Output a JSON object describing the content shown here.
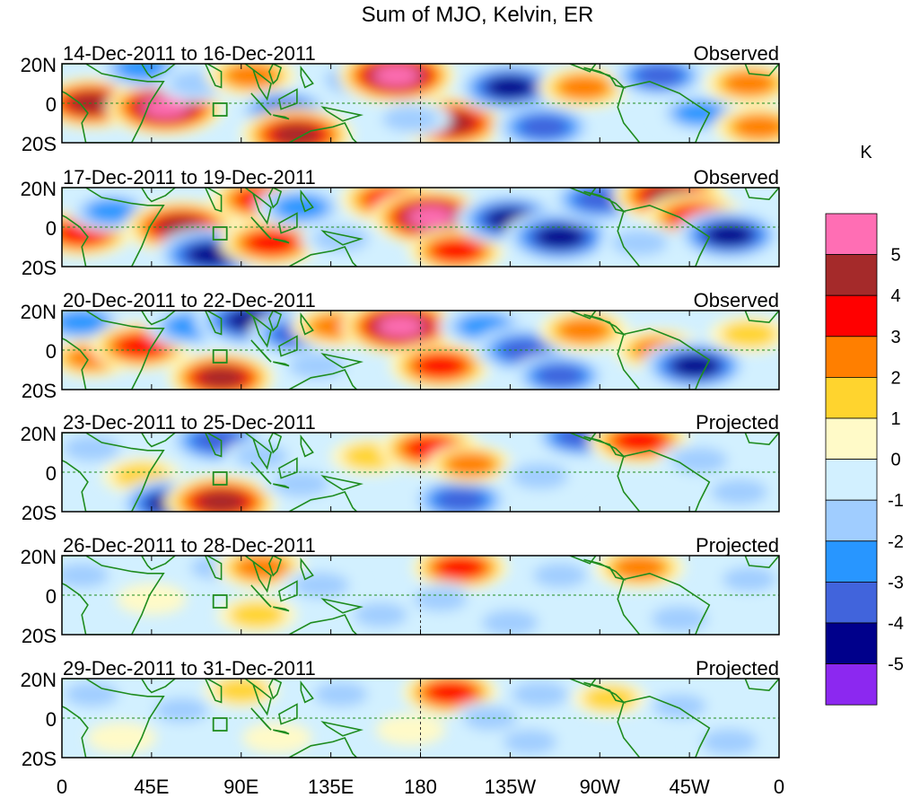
{
  "chart_data": {
    "type": "heatmap",
    "title": "Sum of MJO, Kelvin, ER",
    "units": "K",
    "y_ticks": [
      "20N",
      "0",
      "20S"
    ],
    "x_ticks": [
      "0",
      "45E",
      "90E",
      "135E",
      "180",
      "135W",
      "90W",
      "45W",
      "0"
    ],
    "x_range_lon": [
      0,
      360
    ],
    "y_range_lat": [
      -20,
      20
    ],
    "colorbar": {
      "labels": [
        "5",
        "4",
        "3",
        "2",
        "1",
        "0",
        "-1",
        "-2",
        "-3",
        "-4",
        "-5"
      ],
      "colors": [
        "#ff6eb4",
        "#a52a2a",
        "#ff0000",
        "#ff7f00",
        "#ffd42e",
        "#fffac8",
        "#d2f0ff",
        "#a0cdff",
        "#2896ff",
        "#4164dc",
        "#00008b",
        "#8c28f0"
      ]
    },
    "panels": [
      {
        "period": "14-Dec-2011 to 16-Dec-2011",
        "status": "Observed",
        "anomalies": [
          {
            "lon": 15,
            "lat": 0,
            "value": 4.5
          },
          {
            "lon": 52,
            "lat": -2,
            "value": 5.5
          },
          {
            "lon": 40,
            "lat": 18,
            "value": -3
          },
          {
            "lon": 68,
            "lat": 10,
            "value": -2
          },
          {
            "lon": 95,
            "lat": 14,
            "value": 3
          },
          {
            "lon": 112,
            "lat": -4,
            "value": -3.5
          },
          {
            "lon": 118,
            "lat": -16,
            "value": 5
          },
          {
            "lon": 150,
            "lat": 12,
            "value": -3
          },
          {
            "lon": 168,
            "lat": 14,
            "value": 5.5
          },
          {
            "lon": 195,
            "lat": -10,
            "value": 5
          },
          {
            "lon": 175,
            "lat": -8,
            "value": -2
          },
          {
            "lon": 225,
            "lat": 8,
            "value": -4.5
          },
          {
            "lon": 242,
            "lat": -12,
            "value": -4
          },
          {
            "lon": 262,
            "lat": 8,
            "value": 3
          },
          {
            "lon": 300,
            "lat": 14,
            "value": -3.5
          },
          {
            "lon": 320,
            "lat": -5,
            "value": -2.5
          },
          {
            "lon": 345,
            "lat": 10,
            "value": 3
          },
          {
            "lon": 350,
            "lat": -12,
            "value": 3
          }
        ]
      },
      {
        "period": "17-Dec-2011 to 19-Dec-2011",
        "status": "Observed",
        "anomalies": [
          {
            "lon": 10,
            "lat": -3,
            "value": 4
          },
          {
            "lon": 25,
            "lat": 8,
            "value": -2.5
          },
          {
            "lon": 60,
            "lat": 0,
            "value": 5
          },
          {
            "lon": 75,
            "lat": -14,
            "value": -5
          },
          {
            "lon": 100,
            "lat": 14,
            "value": 4
          },
          {
            "lon": 105,
            "lat": -8,
            "value": 4
          },
          {
            "lon": 120,
            "lat": 10,
            "value": -3
          },
          {
            "lon": 140,
            "lat": -6,
            "value": -2
          },
          {
            "lon": 165,
            "lat": 14,
            "value": 4
          },
          {
            "lon": 185,
            "lat": 5,
            "value": 5.5
          },
          {
            "lon": 198,
            "lat": -12,
            "value": 3.5
          },
          {
            "lon": 225,
            "lat": 4,
            "value": -4.5
          },
          {
            "lon": 250,
            "lat": -5,
            "value": -5
          },
          {
            "lon": 270,
            "lat": 14,
            "value": -4
          },
          {
            "lon": 305,
            "lat": 16,
            "value": 5
          },
          {
            "lon": 318,
            "lat": 5,
            "value": 4
          },
          {
            "lon": 335,
            "lat": -4,
            "value": -4.5
          },
          {
            "lon": 290,
            "lat": -8,
            "value": -2
          }
        ]
      },
      {
        "period": "20-Dec-2011 to 22-Dec-2011",
        "status": "Observed",
        "anomalies": [
          {
            "lon": 10,
            "lat": 14,
            "value": -3
          },
          {
            "lon": 15,
            "lat": -4,
            "value": 2.5
          },
          {
            "lon": 40,
            "lat": 2,
            "value": 4
          },
          {
            "lon": 65,
            "lat": 12,
            "value": -3
          },
          {
            "lon": 80,
            "lat": -14,
            "value": 4.5
          },
          {
            "lon": 95,
            "lat": 15,
            "value": -5
          },
          {
            "lon": 118,
            "lat": 8,
            "value": -3.5
          },
          {
            "lon": 138,
            "lat": 12,
            "value": 3
          },
          {
            "lon": 128,
            "lat": -8,
            "value": -2
          },
          {
            "lon": 170,
            "lat": 12,
            "value": 5.5
          },
          {
            "lon": 190,
            "lat": -8,
            "value": 4
          },
          {
            "lon": 212,
            "lat": 12,
            "value": -3
          },
          {
            "lon": 232,
            "lat": 0,
            "value": -4
          },
          {
            "lon": 250,
            "lat": -13,
            "value": -3.5
          },
          {
            "lon": 262,
            "lat": 10,
            "value": 3
          },
          {
            "lon": 300,
            "lat": 0,
            "value": 3
          },
          {
            "lon": 318,
            "lat": -8,
            "value": -4.5
          },
          {
            "lon": 345,
            "lat": 8,
            "value": 2
          }
        ]
      },
      {
        "period": "23-Dec-2011 to 25-Dec-2011",
        "status": "Projected",
        "anomalies": [
          {
            "lon": 15,
            "lat": 12,
            "value": -2
          },
          {
            "lon": 40,
            "lat": -2,
            "value": 2
          },
          {
            "lon": 55,
            "lat": -16,
            "value": -4.5
          },
          {
            "lon": 78,
            "lat": 16,
            "value": -4
          },
          {
            "lon": 80,
            "lat": -15,
            "value": 5
          },
          {
            "lon": 100,
            "lat": 8,
            "value": -1.5
          },
          {
            "lon": 120,
            "lat": -6,
            "value": -2
          },
          {
            "lon": 155,
            "lat": 8,
            "value": 2
          },
          {
            "lon": 185,
            "lat": 12,
            "value": 4
          },
          {
            "lon": 200,
            "lat": -14,
            "value": -4
          },
          {
            "lon": 205,
            "lat": 4,
            "value": 2.5
          },
          {
            "lon": 240,
            "lat": -2,
            "value": -2
          },
          {
            "lon": 260,
            "lat": 18,
            "value": -3.5
          },
          {
            "lon": 290,
            "lat": 16,
            "value": 4
          },
          {
            "lon": 320,
            "lat": 6,
            "value": -2
          },
          {
            "lon": 340,
            "lat": -10,
            "value": -2
          }
        ]
      },
      {
        "period": "26-Dec-2011 to 28-Dec-2011",
        "status": "Projected",
        "anomalies": [
          {
            "lon": 10,
            "lat": 10,
            "value": -1.5
          },
          {
            "lon": 45,
            "lat": -2,
            "value": 1
          },
          {
            "lon": 78,
            "lat": 14,
            "value": -1.5
          },
          {
            "lon": 100,
            "lat": 14,
            "value": 3
          },
          {
            "lon": 98,
            "lat": -10,
            "value": 2
          },
          {
            "lon": 130,
            "lat": 5,
            "value": -2
          },
          {
            "lon": 160,
            "lat": -10,
            "value": -1.5
          },
          {
            "lon": 200,
            "lat": 14,
            "value": 3.5
          },
          {
            "lon": 190,
            "lat": -2,
            "value": -1.5
          },
          {
            "lon": 225,
            "lat": -14,
            "value": -2
          },
          {
            "lon": 250,
            "lat": 10,
            "value": -1.5
          },
          {
            "lon": 290,
            "lat": 14,
            "value": 3
          },
          {
            "lon": 310,
            "lat": -12,
            "value": -2
          },
          {
            "lon": 345,
            "lat": 8,
            "value": -1.5
          }
        ]
      },
      {
        "period": "29-Dec-2011 to 31-Dec-2011",
        "status": "Projected",
        "anomalies": [
          {
            "lon": 15,
            "lat": 12,
            "value": -1.5
          },
          {
            "lon": 30,
            "lat": -10,
            "value": 1
          },
          {
            "lon": 60,
            "lat": 4,
            "value": -1.5
          },
          {
            "lon": 90,
            "lat": 14,
            "value": 1.5
          },
          {
            "lon": 108,
            "lat": -10,
            "value": 1
          },
          {
            "lon": 140,
            "lat": 12,
            "value": -1.5
          },
          {
            "lon": 175,
            "lat": -6,
            "value": 1
          },
          {
            "lon": 195,
            "lat": 13,
            "value": 3.5
          },
          {
            "lon": 215,
            "lat": 0,
            "value": -1.5
          },
          {
            "lon": 240,
            "lat": 12,
            "value": -2
          },
          {
            "lon": 235,
            "lat": -12,
            "value": -1.5
          },
          {
            "lon": 275,
            "lat": 10,
            "value": 1.5
          },
          {
            "lon": 310,
            "lat": 6,
            "value": -1.5
          },
          {
            "lon": 335,
            "lat": -12,
            "value": -2
          }
        ]
      }
    ]
  }
}
